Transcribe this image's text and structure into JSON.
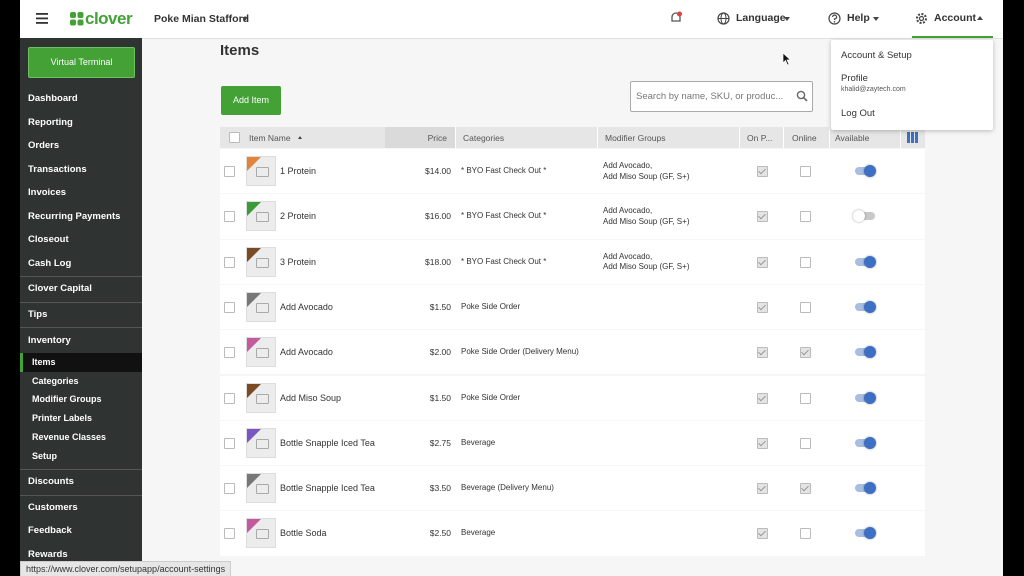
{
  "topbar": {
    "brand": "clover",
    "merchant": "Poke Mian Stafford",
    "language": "Language",
    "help": "Help",
    "account": "Account"
  },
  "sidebar": {
    "button": "Virtual Terminal",
    "groups": [
      {
        "items": [
          "Dashboard",
          "Reporting",
          "Orders",
          "Transactions",
          "Invoices",
          "Recurring Payments",
          "Closeout",
          "Cash Log"
        ]
      },
      {
        "items": [
          "Clover Capital"
        ]
      },
      {
        "items": [
          "Tips"
        ]
      },
      {
        "title": "Inventory",
        "items": [
          "Items",
          "Categories",
          "Modifier Groups",
          "Printer Labels",
          "Revenue Classes",
          "Setup"
        ],
        "active_item": 0
      },
      {
        "items": [
          "Discounts"
        ]
      },
      {
        "items": [
          "Customers",
          "Feedback",
          "Rewards"
        ]
      }
    ]
  },
  "page": {
    "title": "Items",
    "add_button": "Add Item",
    "search_placeholder": "Search by name, SKU, or produc..."
  },
  "table": {
    "columns": [
      "Item Name",
      "Price",
      "Categories",
      "Modifier Groups",
      "On P...",
      "Online",
      "Available"
    ],
    "rows": [
      {
        "name": "1 Protein",
        "price": "$14.00",
        "category": "* BYO Fast Check Out *",
        "modifiers": [
          "Add Avocado,",
          "Add Miso Soup (GF, S+)"
        ],
        "on_pos": true,
        "online": false,
        "available": true,
        "color": "#e3823d"
      },
      {
        "name": "2 Protein",
        "price": "$16.00",
        "category": "* BYO Fast Check Out *",
        "modifiers": [
          "Add Avocado,",
          "Add Miso Soup (GF, S+)"
        ],
        "on_pos": true,
        "online": false,
        "available": false,
        "color": "#3d9a3a"
      },
      {
        "name": "3 Protein",
        "price": "$18.00",
        "category": "* BYO Fast Check Out *",
        "modifiers": [
          "Add Avocado,",
          "Add Miso Soup (GF, S+)"
        ],
        "on_pos": true,
        "online": false,
        "available": true,
        "color": "#7a4a25"
      },
      {
        "name": "Add Avocado",
        "price": "$1.50",
        "category": "Poke Side Order",
        "modifiers": [],
        "on_pos": true,
        "online": false,
        "available": true,
        "color": "#777777"
      },
      {
        "name": "Add Avocado",
        "price": "$2.00",
        "category": "Poke Side Order (Delivery Menu)",
        "modifiers": [],
        "on_pos": true,
        "online": true,
        "available": true,
        "color": "#c45a9e"
      },
      {
        "name": "Add Miso Soup",
        "price": "$1.50",
        "category": "Poke Side Order",
        "modifiers": [],
        "on_pos": true,
        "online": false,
        "available": true,
        "color": "#7a4a25"
      },
      {
        "name": "Bottle Snapple Iced Tea",
        "price": "$2.75",
        "category": "Beverage",
        "modifiers": [],
        "on_pos": true,
        "online": false,
        "available": true,
        "color": "#7b55c4"
      },
      {
        "name": "Bottle Snapple Iced Tea",
        "price": "$3.50",
        "category": "Beverage (Delivery Menu)",
        "modifiers": [],
        "on_pos": true,
        "online": true,
        "available": true,
        "color": "#777777"
      },
      {
        "name": "Bottle Soda",
        "price": "$2.50",
        "category": "Beverage",
        "modifiers": [],
        "on_pos": true,
        "online": false,
        "available": true,
        "color": "#c45a9e"
      }
    ]
  },
  "account_menu": {
    "items": [
      "Account & Setup",
      "Profile",
      "Log Out"
    ],
    "email": "khalid@zaytech.com"
  },
  "status_url": "https://www.clover.com/setupapp/account-settings"
}
